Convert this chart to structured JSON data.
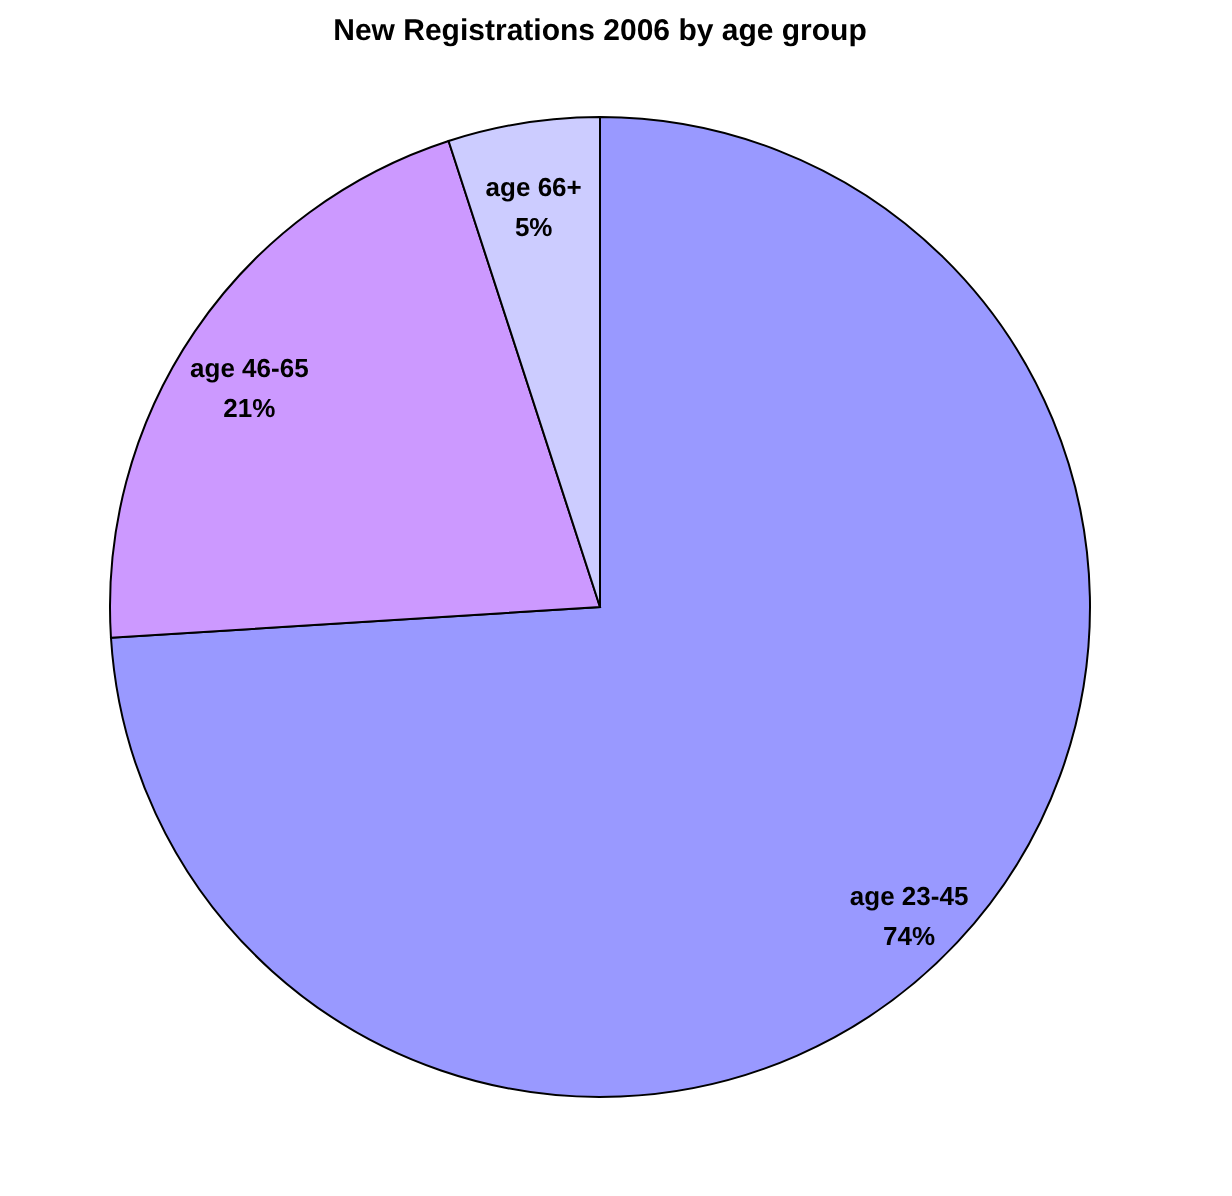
{
  "chart_data": {
    "type": "pie",
    "title": "New Registrations 2006 by age group",
    "categories": [
      "age 23-45",
      "age 46-65",
      "age 66+"
    ],
    "values": [
      74,
      21,
      5
    ],
    "value_labels": [
      "74%",
      "21%",
      "5%"
    ],
    "colors": [
      "#9999ff",
      "#cc99ff",
      "#ccccff"
    ],
    "legend": false
  }
}
